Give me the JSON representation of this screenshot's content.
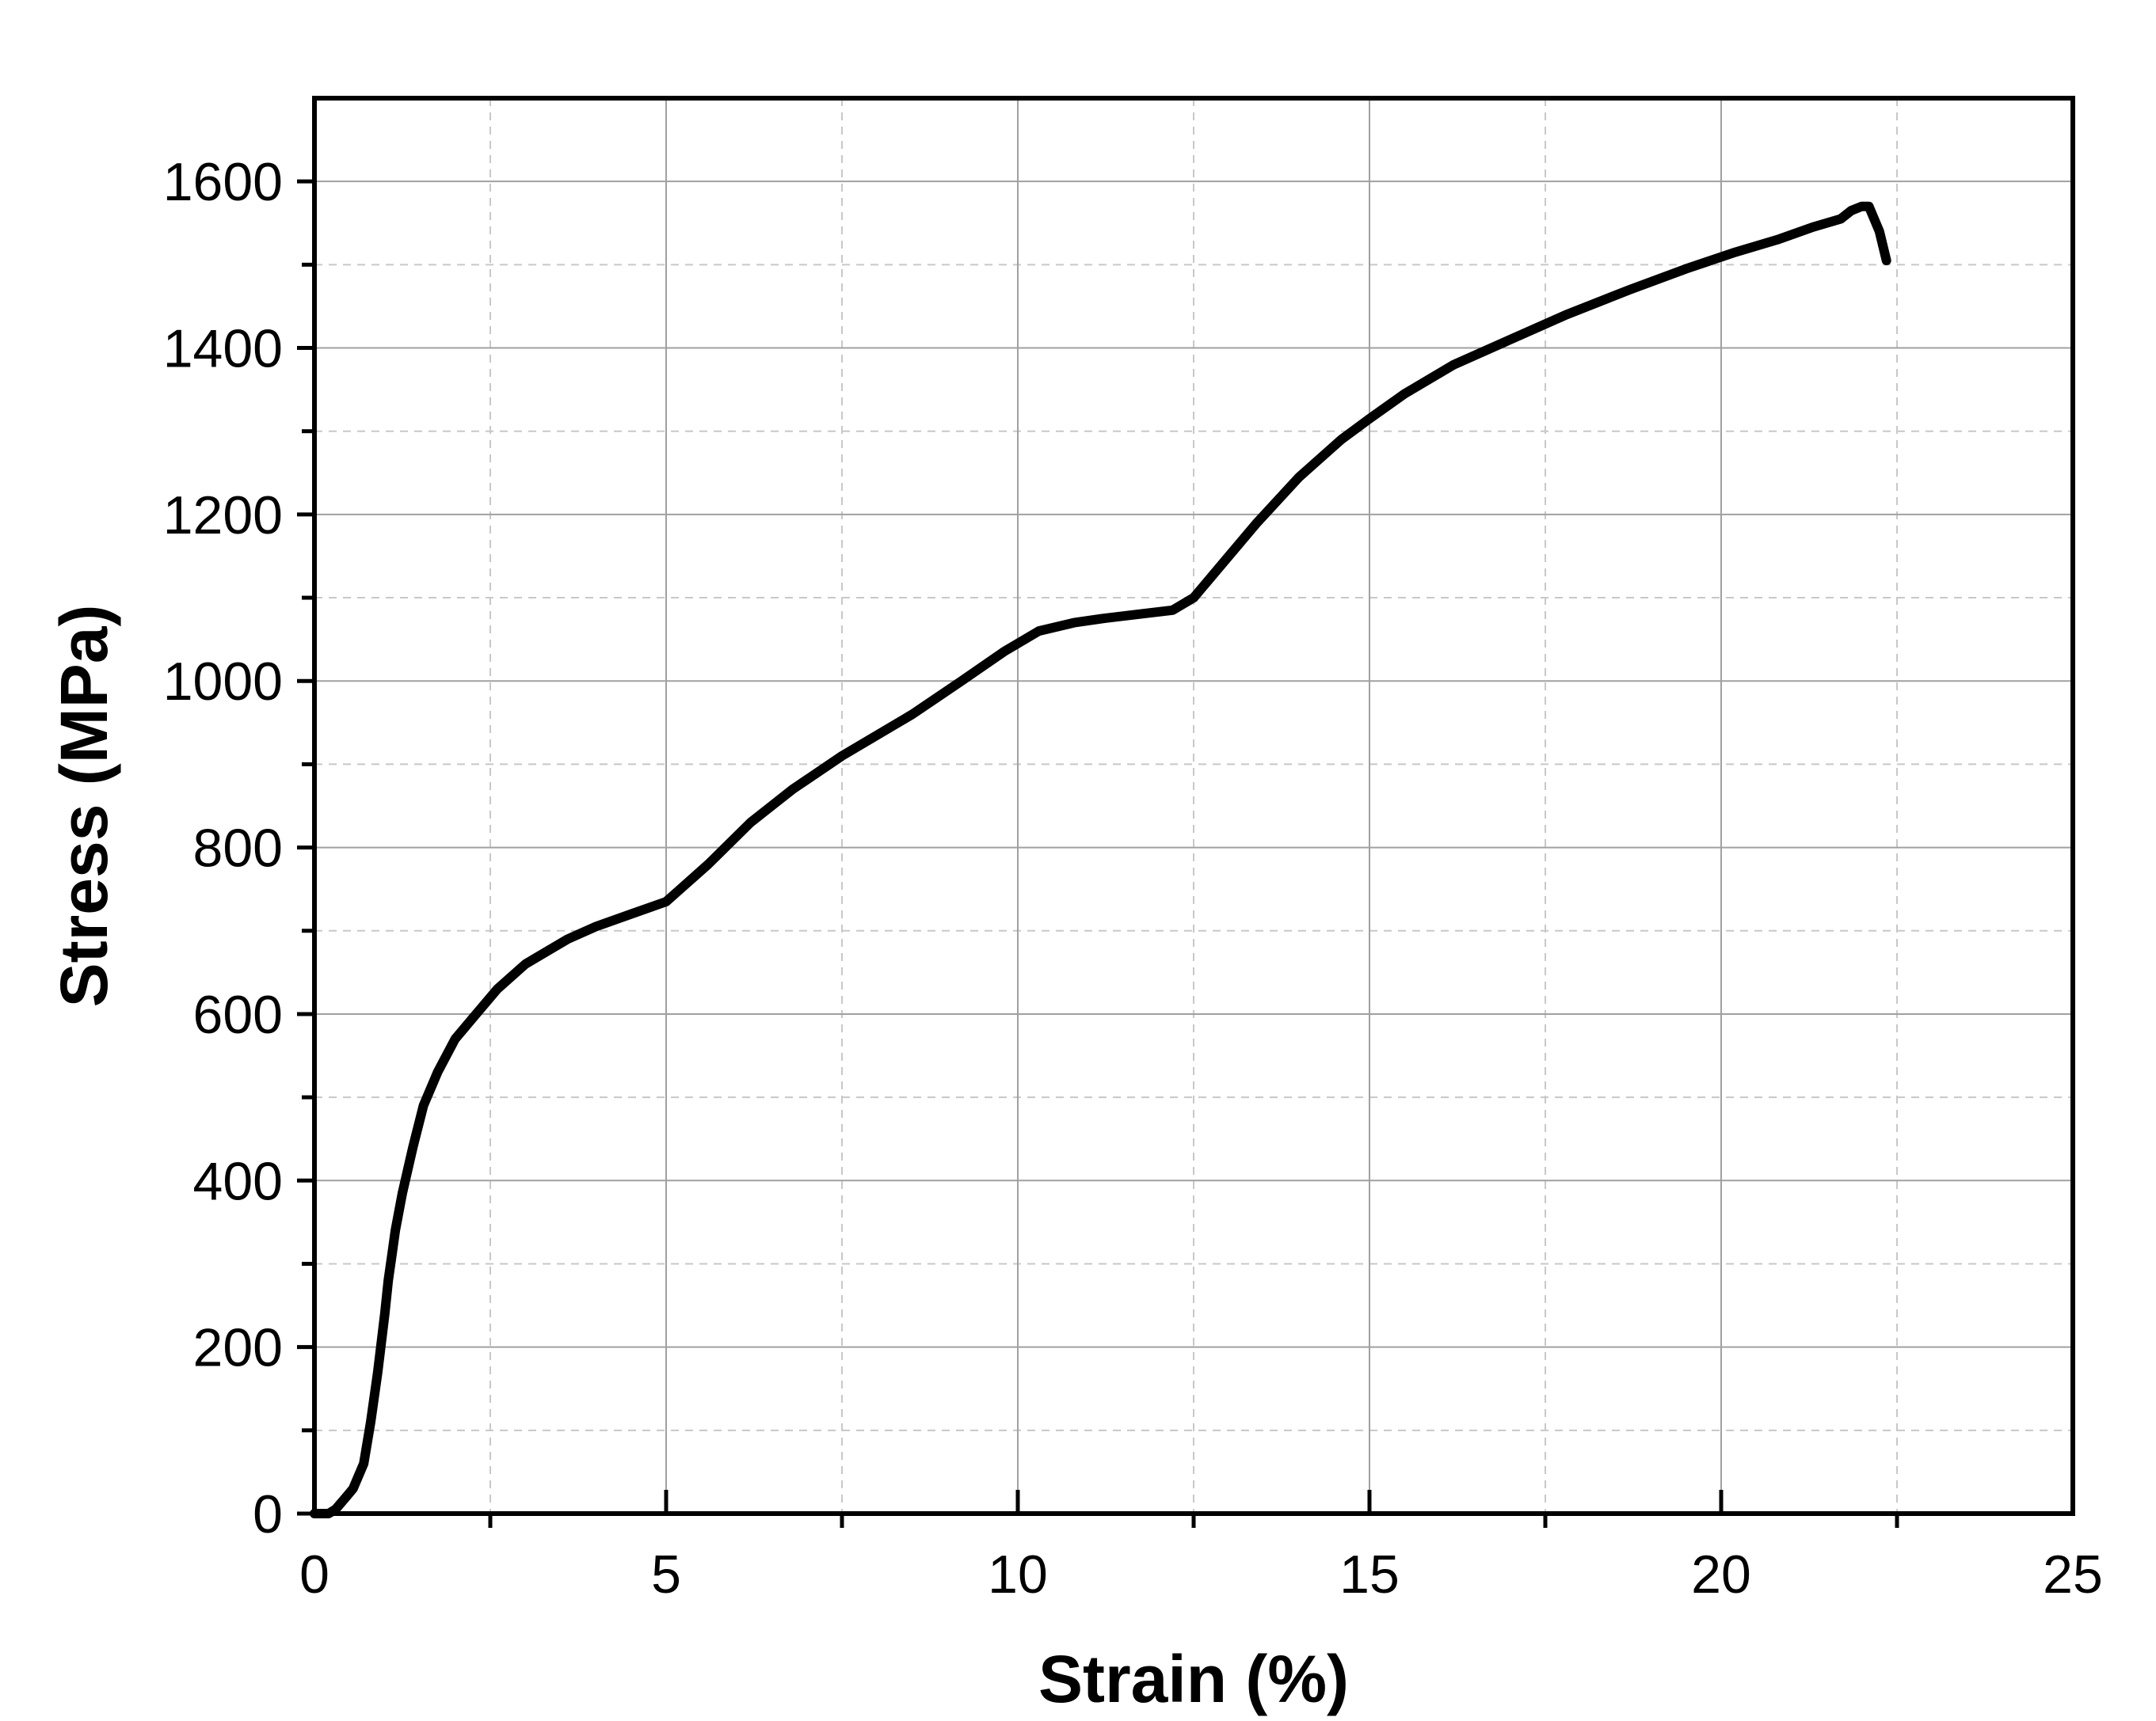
{
  "chart_data": {
    "type": "line",
    "xlabel": "Strain (%)",
    "ylabel": "Stress (MPa)",
    "xlim": [
      0,
      25
    ],
    "ylim": [
      0,
      1700
    ],
    "x_ticks": [
      0,
      5,
      10,
      15,
      20,
      25
    ],
    "x_minor_ticks": [
      2.5,
      7.5,
      12.5,
      17.5,
      22.5
    ],
    "y_ticks": [
      0,
      200,
      400,
      600,
      800,
      1000,
      1200,
      1400,
      1600
    ],
    "y_minor_ticks": [
      100,
      300,
      500,
      700,
      900,
      1100,
      1300,
      1500
    ],
    "grid": "major solid, minor dashed",
    "series": [
      {
        "color": "#000000",
        "x": [
          0.0,
          0.2,
          0.3,
          0.45,
          0.55,
          0.7,
          0.8,
          0.9,
          1.0,
          1.05,
          1.1,
          1.15,
          1.25,
          1.4,
          1.55,
          1.75,
          2.0,
          2.3,
          2.6,
          3.0,
          3.3,
          3.6,
          4.0,
          4.5,
          5.0,
          5.2,
          5.6,
          6.2,
          6.8,
          7.5,
          8.5,
          9.2,
          9.8,
          10.3,
          10.8,
          11.2,
          11.7,
          12.2,
          12.5,
          12.9,
          13.4,
          14.0,
          14.6,
          15.0,
          15.5,
          16.2,
          17.0,
          17.8,
          18.7,
          19.5,
          20.2,
          20.8,
          21.3,
          21.7,
          21.85,
          22.0,
          22.1,
          22.25,
          22.35
        ],
        "y": [
          0,
          0,
          5,
          20,
          30,
          60,
          110,
          170,
          240,
          280,
          310,
          340,
          385,
          440,
          490,
          530,
          570,
          600,
          630,
          660,
          675,
          690,
          705,
          720,
          735,
          750,
          780,
          830,
          870,
          910,
          960,
          1000,
          1035,
          1060,
          1070,
          1075,
          1080,
          1085,
          1100,
          1140,
          1190,
          1245,
          1290,
          1315,
          1345,
          1380,
          1410,
          1440,
          1470,
          1495,
          1515,
          1530,
          1545,
          1555,
          1565,
          1570,
          1570,
          1540,
          1505
        ]
      }
    ]
  }
}
